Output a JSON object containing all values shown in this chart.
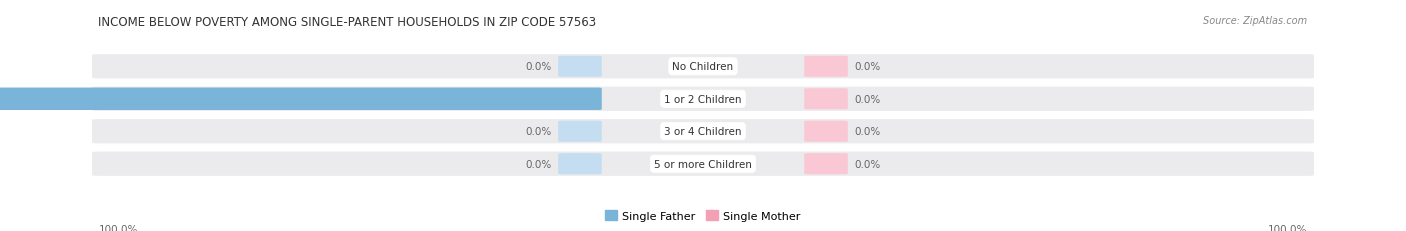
{
  "title": "INCOME BELOW POVERTY AMONG SINGLE-PARENT HOUSEHOLDS IN ZIP CODE 57563",
  "source": "Source: ZipAtlas.com",
  "categories": [
    "No Children",
    "1 or 2 Children",
    "3 or 4 Children",
    "5 or more Children"
  ],
  "single_father": [
    0.0,
    100.0,
    0.0,
    0.0
  ],
  "single_mother": [
    0.0,
    0.0,
    0.0,
    0.0
  ],
  "father_color": "#7ab4d8",
  "mother_color": "#f4a0b4",
  "father_color_light": "#c5ddf0",
  "mother_color_light": "#fac8d4",
  "bar_bg_color": "#ebebee",
  "row_bg_color": "#f0f0f3",
  "title_fontsize": 8.5,
  "source_fontsize": 7.0,
  "label_fontsize": 7.5,
  "cat_fontsize": 7.5,
  "legend_fontsize": 8.0,
  "figsize": [
    14.06,
    2.32
  ],
  "dpi": 100,
  "axis_label_left": "100.0%",
  "axis_label_right": "100.0%",
  "xlim_max": 100
}
